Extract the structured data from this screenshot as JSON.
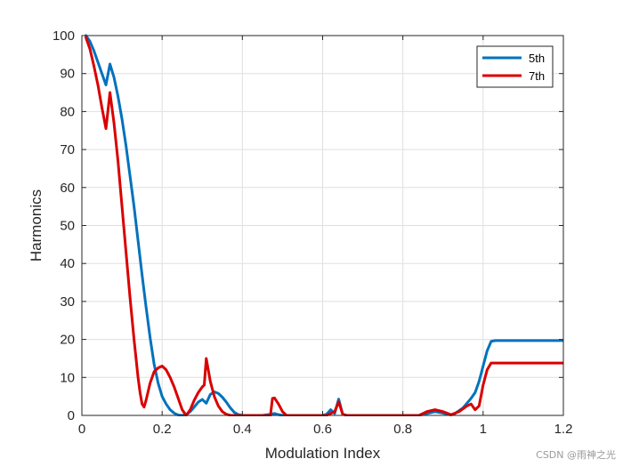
{
  "chart_data": {
    "type": "line",
    "xlabel": "Modulation Index",
    "ylabel": "Harmonics",
    "xlim": [
      0,
      1.2
    ],
    "ylim": [
      0,
      100
    ],
    "xticks": [
      0,
      0.2,
      0.4,
      0.6,
      0.8,
      1,
      1.2
    ],
    "xtick_labels": [
      "0",
      "0.2",
      "0.4",
      "0.6",
      "0.8",
      "1",
      "1.2"
    ],
    "yticks": [
      0,
      10,
      20,
      30,
      40,
      50,
      60,
      70,
      80,
      90,
      100
    ],
    "ytick_labels": [
      "0",
      "10",
      "20",
      "30",
      "40",
      "50",
      "60",
      "70",
      "80",
      "90",
      "100"
    ],
    "grid": true,
    "legend_position": "top-right",
    "series": [
      {
        "name": "5th",
        "color": "#0072BD",
        "points": [
          [
            0.01,
            100
          ],
          [
            0.02,
            98.5
          ],
          [
            0.03,
            96
          ],
          [
            0.04,
            93
          ],
          [
            0.05,
            90
          ],
          [
            0.06,
            87
          ],
          [
            0.07,
            92.5
          ],
          [
            0.08,
            89
          ],
          [
            0.09,
            84
          ],
          [
            0.1,
            78
          ],
          [
            0.11,
            71
          ],
          [
            0.12,
            63
          ],
          [
            0.13,
            55
          ],
          [
            0.14,
            46
          ],
          [
            0.15,
            37
          ],
          [
            0.16,
            28.5
          ],
          [
            0.17,
            20.5
          ],
          [
            0.18,
            13.5
          ],
          [
            0.19,
            8.5
          ],
          [
            0.2,
            5
          ],
          [
            0.21,
            3
          ],
          [
            0.22,
            1.5
          ],
          [
            0.23,
            0.6
          ],
          [
            0.24,
            0.1
          ],
          [
            0.25,
            0
          ],
          [
            0.26,
            0.2
          ],
          [
            0.27,
            1
          ],
          [
            0.28,
            2.2
          ],
          [
            0.29,
            3.5
          ],
          [
            0.3,
            4.2
          ],
          [
            0.31,
            3.2
          ],
          [
            0.32,
            5.5
          ],
          [
            0.33,
            6.2
          ],
          [
            0.34,
            5.8
          ],
          [
            0.35,
            4.8
          ],
          [
            0.36,
            3.5
          ],
          [
            0.37,
            2
          ],
          [
            0.38,
            0.8
          ],
          [
            0.39,
            0.2
          ],
          [
            0.4,
            0
          ],
          [
            0.45,
            0
          ],
          [
            0.47,
            0.3
          ],
          [
            0.48,
            0.5
          ],
          [
            0.49,
            0.2
          ],
          [
            0.5,
            0
          ],
          [
            0.6,
            0
          ],
          [
            0.61,
            0.3
          ],
          [
            0.62,
            1.5
          ],
          [
            0.63,
            0.5
          ],
          [
            0.64,
            4.3
          ],
          [
            0.65,
            0.3
          ],
          [
            0.66,
            0
          ],
          [
            0.84,
            0
          ],
          [
            0.86,
            0.5
          ],
          [
            0.88,
            1
          ],
          [
            0.9,
            0.6
          ],
          [
            0.92,
            0.1
          ],
          [
            0.93,
            0.5
          ],
          [
            0.95,
            2
          ],
          [
            0.97,
            4.5
          ],
          [
            0.98,
            6
          ],
          [
            0.99,
            9
          ],
          [
            1.0,
            13
          ],
          [
            1.01,
            17
          ],
          [
            1.02,
            19.5
          ],
          [
            1.03,
            19.7
          ],
          [
            1.2,
            19.7
          ]
        ]
      },
      {
        "name": "7th",
        "color": "#D90000",
        "points": [
          [
            0.01,
            99.5
          ],
          [
            0.02,
            96.5
          ],
          [
            0.03,
            92
          ],
          [
            0.04,
            87
          ],
          [
            0.05,
            81
          ],
          [
            0.06,
            75.5
          ],
          [
            0.07,
            85
          ],
          [
            0.08,
            77
          ],
          [
            0.09,
            67
          ],
          [
            0.1,
            55
          ],
          [
            0.11,
            43
          ],
          [
            0.12,
            31
          ],
          [
            0.13,
            20
          ],
          [
            0.14,
            10
          ],
          [
            0.145,
            6
          ],
          [
            0.15,
            3
          ],
          [
            0.155,
            2.2
          ],
          [
            0.16,
            4
          ],
          [
            0.17,
            8.5
          ],
          [
            0.18,
            11.5
          ],
          [
            0.19,
            12.5
          ],
          [
            0.2,
            13
          ],
          [
            0.21,
            12
          ],
          [
            0.22,
            10
          ],
          [
            0.23,
            7.5
          ],
          [
            0.24,
            4.5
          ],
          [
            0.25,
            1.5
          ],
          [
            0.26,
            0
          ],
          [
            0.27,
            1.5
          ],
          [
            0.28,
            4
          ],
          [
            0.29,
            6
          ],
          [
            0.3,
            7.5
          ],
          [
            0.305,
            8
          ],
          [
            0.31,
            15
          ],
          [
            0.32,
            9
          ],
          [
            0.33,
            5
          ],
          [
            0.34,
            2.5
          ],
          [
            0.35,
            1
          ],
          [
            0.36,
            0.3
          ],
          [
            0.37,
            0
          ],
          [
            0.47,
            0
          ],
          [
            0.475,
            4.5
          ],
          [
            0.48,
            4.6
          ],
          [
            0.49,
            3
          ],
          [
            0.5,
            1
          ],
          [
            0.51,
            0
          ],
          [
            0.61,
            0
          ],
          [
            0.62,
            0.5
          ],
          [
            0.63,
            1
          ],
          [
            0.64,
            3.6
          ],
          [
            0.65,
            0.3
          ],
          [
            0.66,
            0
          ],
          [
            0.84,
            0
          ],
          [
            0.86,
            1
          ],
          [
            0.88,
            1.5
          ],
          [
            0.9,
            1
          ],
          [
            0.92,
            0.2
          ],
          [
            0.94,
            1
          ],
          [
            0.96,
            2.5
          ],
          [
            0.97,
            3
          ],
          [
            0.98,
            1.5
          ],
          [
            0.99,
            2.5
          ],
          [
            1.0,
            8
          ],
          [
            1.01,
            12
          ],
          [
            1.02,
            13.8
          ],
          [
            1.03,
            13.8
          ],
          [
            1.2,
            13.8
          ]
        ]
      }
    ]
  },
  "watermark": "CSDN @雨神之光"
}
